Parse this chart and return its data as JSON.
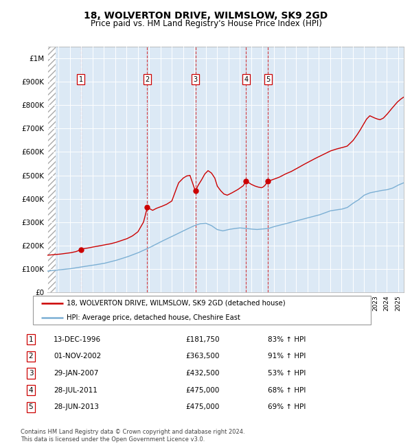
{
  "title": "18, WOLVERTON DRIVE, WILMSLOW, SK9 2GD",
  "subtitle": "Price paid vs. HM Land Registry's House Price Index (HPI)",
  "title_fontsize": 10,
  "subtitle_fontsize": 8.5,
  "plot_bg_color": "#dce9f5",
  "legend_label_red": "18, WOLVERTON DRIVE, WILMSLOW, SK9 2GD (detached house)",
  "legend_label_blue": "HPI: Average price, detached house, Cheshire East",
  "footer": "Contains HM Land Registry data © Crown copyright and database right 2024.\nThis data is licensed under the Open Government Licence v3.0.",
  "transactions": [
    {
      "num": 1,
      "date": "13-DEC-1996",
      "price": 181750,
      "pct": "83%",
      "year": 1996.95
    },
    {
      "num": 2,
      "date": "01-NOV-2002",
      "price": 363500,
      "pct": "91%",
      "year": 2002.83
    },
    {
      "num": 3,
      "date": "29-JAN-2007",
      "price": 432500,
      "pct": "53%",
      "year": 2007.08
    },
    {
      "num": 4,
      "date": "28-JUL-2011",
      "price": 475000,
      "pct": "68%",
      "year": 2011.57
    },
    {
      "num": 5,
      "date": "28-JUN-2013",
      "price": 475000,
      "pct": "69%",
      "year": 2013.49
    }
  ],
  "yticks": [
    0,
    100000,
    200000,
    300000,
    400000,
    500000,
    600000,
    700000,
    800000,
    900000,
    1000000
  ],
  "ytick_labels": [
    "£0",
    "£100K",
    "£200K",
    "£300K",
    "£400K",
    "£500K",
    "£600K",
    "£700K",
    "£800K",
    "£900K",
    "£1M"
  ],
  "ymax": 1050000,
  "xmin": 1994.0,
  "xmax": 2025.5,
  "red_color": "#cc0000",
  "blue_color": "#7bafd4",
  "hatch_end": 1994.75
}
